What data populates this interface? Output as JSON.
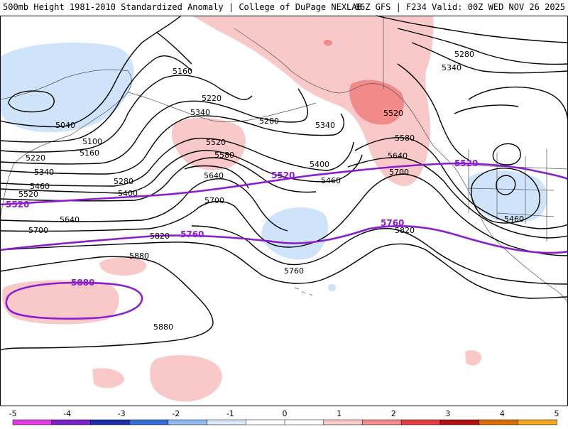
{
  "header": {
    "left": "500mb Height 1981-2010 Standardized Anomaly | College of DuPage NEXLAB",
    "right": "06Z GFS | F234 Valid: 00Z WED NOV 26 2025"
  },
  "colors": {
    "pos1": "#f9c8c8",
    "pos2": "#f28a8a",
    "neg1": "#cfe3fb",
    "contour": "#000000",
    "highlight": "#8a1ecf",
    "coast": "#555555"
  },
  "height_labels": [
    {
      "text": "5160"
    },
    {
      "text": "5220"
    },
    {
      "text": "5340"
    },
    {
      "text": "5280"
    },
    {
      "text": "5040"
    },
    {
      "text": "5100"
    },
    {
      "text": "5160"
    },
    {
      "text": "5220"
    },
    {
      "text": "5340"
    },
    {
      "text": "5460"
    },
    {
      "text": "5520"
    },
    {
      "text": "5280"
    },
    {
      "text": "5400"
    },
    {
      "text": "5520"
    },
    {
      "text": "5580"
    },
    {
      "text": "5640"
    },
    {
      "text": "5700"
    },
    {
      "text": "5640"
    },
    {
      "text": "5700"
    },
    {
      "text": "5820"
    },
    {
      "text": "5880"
    },
    {
      "text": "5760"
    },
    {
      "text": "5880"
    },
    {
      "text": "5340"
    },
    {
      "text": "5400"
    },
    {
      "text": "5460"
    },
    {
      "text": "5520"
    },
    {
      "text": "5580"
    },
    {
      "text": "5640"
    },
    {
      "text": "5700"
    },
    {
      "text": "5820"
    },
    {
      "text": "5280"
    },
    {
      "text": "5340"
    },
    {
      "text": "5460"
    }
  ],
  "highlight_labels": [
    {
      "text": "5520"
    },
    {
      "text": "5520"
    },
    {
      "text": "5520"
    },
    {
      "text": "5760"
    },
    {
      "text": "5760"
    },
    {
      "text": "5880"
    }
  ],
  "legend": {
    "ticks": [
      "-5",
      "-4",
      "-3",
      "-2",
      "-1",
      "0",
      "1",
      "2",
      "3",
      "4",
      "5"
    ],
    "bins": [
      {
        "color": "#e23be6"
      },
      {
        "color": "#7b1fc7"
      },
      {
        "color": "#1a2fa8"
      },
      {
        "color": "#2f6fd6"
      },
      {
        "color": "#8fb8f0"
      },
      {
        "color": "#d6e7fb"
      },
      {
        "color": "#ffffff"
      },
      {
        "color": "#ffffff"
      },
      {
        "color": "#f9c8c8"
      },
      {
        "color": "#f28a8a"
      },
      {
        "color": "#e33b3b"
      },
      {
        "color": "#b50f0f"
      },
      {
        "color": "#d96d00"
      },
      {
        "color": "#f2a81a"
      }
    ]
  }
}
